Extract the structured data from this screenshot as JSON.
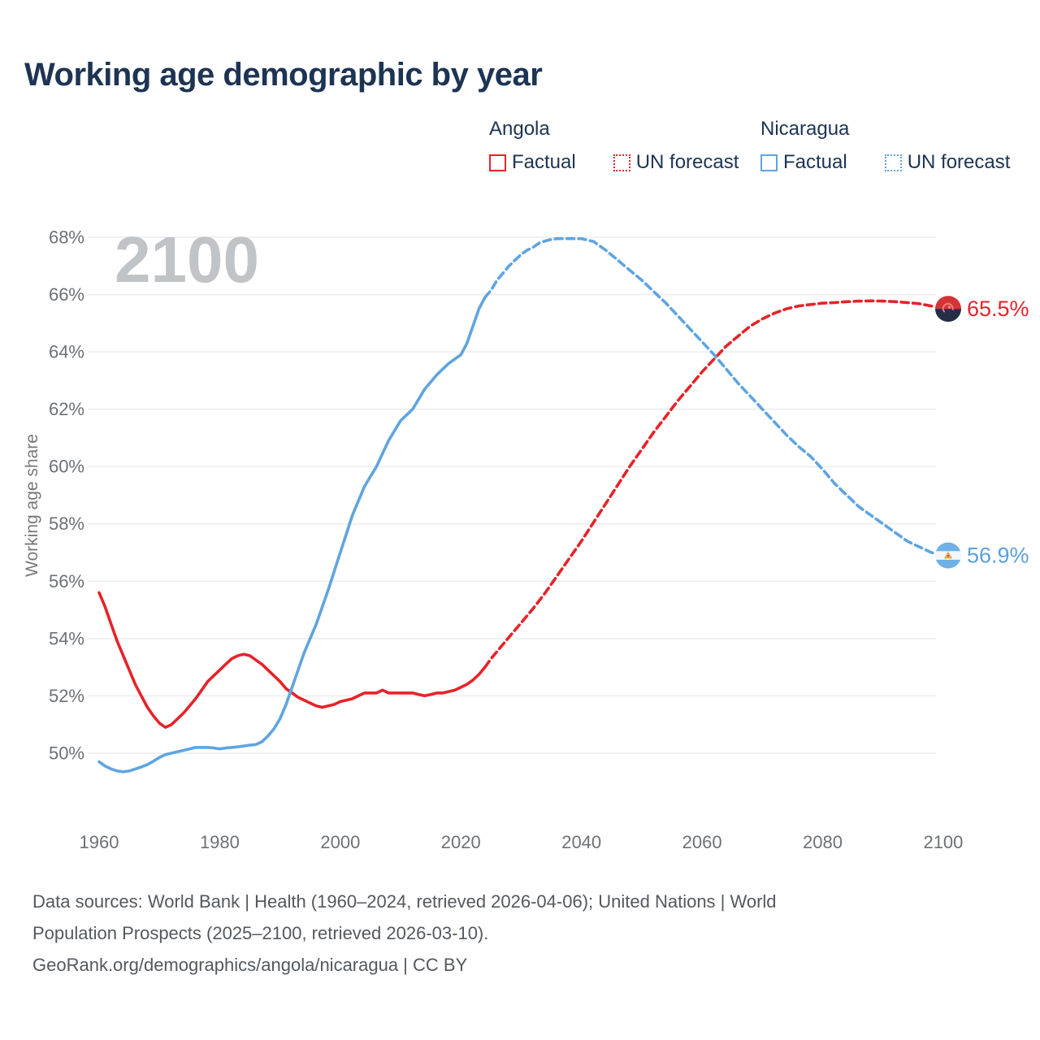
{
  "title": "Working age demographic by year",
  "watermark_year": "2100",
  "legend": {
    "groups": [
      {
        "name": "Angola",
        "color": "#e62329",
        "items": [
          {
            "label": "Factual",
            "swatch": "solid"
          },
          {
            "label": "UN forecast",
            "swatch": "dotted"
          }
        ]
      },
      {
        "name": "Nicaragua",
        "color": "#5fa4e0",
        "items": [
          {
            "label": "Factual",
            "swatch": "solid"
          },
          {
            "label": "UN forecast",
            "swatch": "dotted"
          }
        ]
      }
    ]
  },
  "chart_data": {
    "type": "line",
    "title": "Working age demographic by year",
    "xlabel": "",
    "ylabel": "Working age share",
    "grid": "horizontal",
    "legend_position": "top-right",
    "xlim": [
      1958,
      2113
    ],
    "ylim": [
      48.8,
      69
    ],
    "x_ticks": [
      1960,
      1980,
      2000,
      2020,
      2040,
      2060,
      2080,
      2100
    ],
    "y_ticks": [
      50,
      52,
      54,
      56,
      58,
      60,
      62,
      64,
      66,
      68
    ],
    "y_tick_suffix": "%",
    "series": [
      {
        "id": "angola-factual",
        "country": "Angola",
        "name": "Angola Factual",
        "style": "solid",
        "color": "#e62329",
        "points": [
          [
            1960,
            55.6
          ],
          [
            1961,
            55.1
          ],
          [
            1962,
            54.5
          ],
          [
            1963,
            53.9
          ],
          [
            1964,
            53.4
          ],
          [
            1965,
            52.9
          ],
          [
            1966,
            52.4
          ],
          [
            1967,
            52.0
          ],
          [
            1968,
            51.6
          ],
          [
            1969,
            51.3
          ],
          [
            1970,
            51.05
          ],
          [
            1971,
            50.9
          ],
          [
            1972,
            51.0
          ],
          [
            1973,
            51.2
          ],
          [
            1974,
            51.4
          ],
          [
            1975,
            51.65
          ],
          [
            1976,
            51.9
          ],
          [
            1977,
            52.2
          ],
          [
            1978,
            52.5
          ],
          [
            1979,
            52.7
          ],
          [
            1980,
            52.9
          ],
          [
            1981,
            53.1
          ],
          [
            1982,
            53.3
          ],
          [
            1983,
            53.4
          ],
          [
            1984,
            53.45
          ],
          [
            1985,
            53.4
          ],
          [
            1986,
            53.25
          ],
          [
            1987,
            53.1
          ],
          [
            1988,
            52.9
          ],
          [
            1989,
            52.7
          ],
          [
            1990,
            52.5
          ],
          [
            1991,
            52.25
          ],
          [
            1992,
            52.1
          ],
          [
            1993,
            51.95
          ],
          [
            1994,
            51.85
          ],
          [
            1995,
            51.75
          ],
          [
            1996,
            51.65
          ],
          [
            1997,
            51.6
          ],
          [
            1998,
            51.65
          ],
          [
            1999,
            51.7
          ],
          [
            2000,
            51.8
          ],
          [
            2001,
            51.85
          ],
          [
            2002,
            51.9
          ],
          [
            2003,
            52.0
          ],
          [
            2004,
            52.1
          ],
          [
            2005,
            52.1
          ],
          [
            2006,
            52.1
          ],
          [
            2007,
            52.2
          ],
          [
            2008,
            52.1
          ],
          [
            2009,
            52.1
          ],
          [
            2010,
            52.1
          ],
          [
            2011,
            52.1
          ],
          [
            2012,
            52.1
          ],
          [
            2013,
            52.05
          ],
          [
            2014,
            52.0
          ],
          [
            2015,
            52.05
          ],
          [
            2016,
            52.1
          ],
          [
            2017,
            52.1
          ],
          [
            2018,
            52.15
          ],
          [
            2019,
            52.2
          ],
          [
            2020,
            52.3
          ],
          [
            2021,
            52.4
          ],
          [
            2022,
            52.55
          ],
          [
            2023,
            52.75
          ],
          [
            2024,
            53.0
          ]
        ]
      },
      {
        "id": "angola-forecast",
        "country": "Angola",
        "name": "Angola UN forecast",
        "style": "dashed",
        "color": "#e62329",
        "points": [
          [
            2024,
            53.0
          ],
          [
            2025,
            53.3
          ],
          [
            2026,
            53.55
          ],
          [
            2027,
            53.8
          ],
          [
            2028,
            54.05
          ],
          [
            2029,
            54.3
          ],
          [
            2030,
            54.55
          ],
          [
            2032,
            55.05
          ],
          [
            2034,
            55.6
          ],
          [
            2036,
            56.2
          ],
          [
            2038,
            56.8
          ],
          [
            2040,
            57.4
          ],
          [
            2042,
            58.05
          ],
          [
            2044,
            58.7
          ],
          [
            2046,
            59.35
          ],
          [
            2048,
            60.0
          ],
          [
            2050,
            60.6
          ],
          [
            2052,
            61.2
          ],
          [
            2054,
            61.75
          ],
          [
            2056,
            62.3
          ],
          [
            2058,
            62.8
          ],
          [
            2060,
            63.3
          ],
          [
            2062,
            63.75
          ],
          [
            2064,
            64.2
          ],
          [
            2066,
            64.55
          ],
          [
            2068,
            64.9
          ],
          [
            2070,
            65.15
          ],
          [
            2072,
            65.35
          ],
          [
            2074,
            65.5
          ],
          [
            2076,
            65.6
          ],
          [
            2078,
            65.65
          ],
          [
            2080,
            65.7
          ],
          [
            2082,
            65.72
          ],
          [
            2084,
            65.75
          ],
          [
            2086,
            65.77
          ],
          [
            2088,
            65.78
          ],
          [
            2090,
            65.77
          ],
          [
            2092,
            65.75
          ],
          [
            2094,
            65.72
          ],
          [
            2096,
            65.68
          ],
          [
            2098,
            65.6
          ],
          [
            2100,
            65.5
          ]
        ]
      },
      {
        "id": "nicaragua-factual",
        "country": "Nicaragua",
        "name": "Nicaragua Factual",
        "style": "solid",
        "color": "#5fa4e0",
        "points": [
          [
            1960,
            49.7
          ],
          [
            1961,
            49.55
          ],
          [
            1962,
            49.45
          ],
          [
            1963,
            49.38
          ],
          [
            1964,
            49.35
          ],
          [
            1965,
            49.38
          ],
          [
            1966,
            49.45
          ],
          [
            1967,
            49.52
          ],
          [
            1968,
            49.6
          ],
          [
            1969,
            49.72
          ],
          [
            1970,
            49.85
          ],
          [
            1971,
            49.95
          ],
          [
            1972,
            50.0
          ],
          [
            1973,
            50.05
          ],
          [
            1974,
            50.1
          ],
          [
            1975,
            50.15
          ],
          [
            1976,
            50.2
          ],
          [
            1977,
            50.2
          ],
          [
            1978,
            50.2
          ],
          [
            1979,
            50.18
          ],
          [
            1980,
            50.15
          ],
          [
            1981,
            50.18
          ],
          [
            1982,
            50.2
          ],
          [
            1983,
            50.22
          ],
          [
            1984,
            50.25
          ],
          [
            1985,
            50.28
          ],
          [
            1986,
            50.3
          ],
          [
            1987,
            50.4
          ],
          [
            1988,
            50.6
          ],
          [
            1989,
            50.85
          ],
          [
            1990,
            51.2
          ],
          [
            1991,
            51.7
          ],
          [
            1992,
            52.3
          ],
          [
            1993,
            52.9
          ],
          [
            1994,
            53.5
          ],
          [
            1995,
            54.0
          ],
          [
            1996,
            54.5
          ],
          [
            1997,
            55.1
          ],
          [
            1998,
            55.7
          ],
          [
            1999,
            56.35
          ],
          [
            2000,
            57.0
          ],
          [
            2001,
            57.65
          ],
          [
            2002,
            58.3
          ],
          [
            2003,
            58.8
          ],
          [
            2004,
            59.3
          ],
          [
            2005,
            59.65
          ],
          [
            2006,
            60.0
          ],
          [
            2007,
            60.45
          ],
          [
            2008,
            60.9
          ],
          [
            2009,
            61.25
          ],
          [
            2010,
            61.6
          ],
          [
            2011,
            61.8
          ],
          [
            2012,
            62.0
          ],
          [
            2013,
            62.35
          ],
          [
            2014,
            62.7
          ],
          [
            2015,
            62.95
          ],
          [
            2016,
            63.2
          ],
          [
            2017,
            63.4
          ],
          [
            2018,
            63.6
          ],
          [
            2019,
            63.75
          ],
          [
            2020,
            63.9
          ],
          [
            2021,
            64.3
          ],
          [
            2022,
            64.9
          ],
          [
            2023,
            65.5
          ],
          [
            2024,
            65.9
          ]
        ]
      },
      {
        "id": "nicaragua-forecast",
        "country": "Nicaragua",
        "name": "Nicaragua UN forecast",
        "style": "dashed",
        "color": "#5fa4e0",
        "points": [
          [
            2024,
            65.9
          ],
          [
            2025,
            66.15
          ],
          [
            2026,
            66.5
          ],
          [
            2027,
            66.75
          ],
          [
            2028,
            67.0
          ],
          [
            2029,
            67.2
          ],
          [
            2030,
            67.4
          ],
          [
            2031,
            67.55
          ],
          [
            2032,
            67.65
          ],
          [
            2033,
            67.8
          ],
          [
            2034,
            67.87
          ],
          [
            2035,
            67.92
          ],
          [
            2036,
            67.95
          ],
          [
            2038,
            67.95
          ],
          [
            2040,
            67.95
          ],
          [
            2041,
            67.9
          ],
          [
            2042,
            67.85
          ],
          [
            2043,
            67.7
          ],
          [
            2044,
            67.55
          ],
          [
            2046,
            67.2
          ],
          [
            2048,
            66.85
          ],
          [
            2050,
            66.5
          ],
          [
            2052,
            66.1
          ],
          [
            2054,
            65.7
          ],
          [
            2056,
            65.25
          ],
          [
            2058,
            64.8
          ],
          [
            2060,
            64.35
          ],
          [
            2062,
            63.9
          ],
          [
            2064,
            63.4
          ],
          [
            2066,
            62.9
          ],
          [
            2068,
            62.45
          ],
          [
            2070,
            62.0
          ],
          [
            2072,
            61.55
          ],
          [
            2074,
            61.1
          ],
          [
            2076,
            60.7
          ],
          [
            2078,
            60.35
          ],
          [
            2080,
            59.9
          ],
          [
            2082,
            59.4
          ],
          [
            2084,
            59.0
          ],
          [
            2086,
            58.6
          ],
          [
            2088,
            58.3
          ],
          [
            2090,
            58.0
          ],
          [
            2092,
            57.7
          ],
          [
            2094,
            57.4
          ],
          [
            2096,
            57.2
          ],
          [
            2098,
            57.0
          ],
          [
            2100,
            56.9
          ]
        ]
      }
    ],
    "end_labels": [
      {
        "series": "Angola",
        "flag": "angola",
        "value": 65.5,
        "label": "65.5%",
        "color": "#e62329"
      },
      {
        "series": "Nicaragua",
        "flag": "nicaragua",
        "value": 56.9,
        "label": "56.9%",
        "color": "#5ba0dc"
      }
    ]
  },
  "footer": {
    "line1": "Data sources: World Bank | Health (1960–2024, retrieved 2026-04-06); United Nations | World",
    "line2": "Population Prospects (2025–2100, retrieved 2026-03-10).",
    "line3": "GeoRank.org/demographics/angola/nicaragua | CC BY"
  }
}
